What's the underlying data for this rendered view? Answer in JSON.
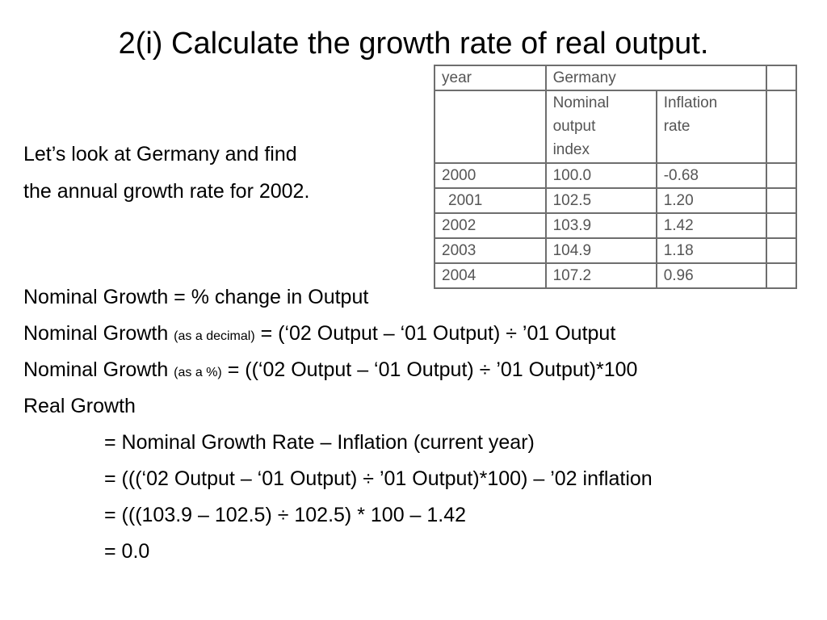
{
  "title": "2(i) Calculate the growth rate of real output.",
  "intro": {
    "line1": "Let’s look at Germany and find",
    "line2": "the annual growth rate for 2002."
  },
  "table": {
    "header_year": "year",
    "header_country": "Germany",
    "col_nominal_1": "Nominal",
    "col_nominal_2": "output",
    "col_nominal_3": "index",
    "col_inflation_1": "Inflation",
    "col_inflation_2": "rate",
    "rows": [
      {
        "year": "2000",
        "nominal": "100.0",
        "inflation": "-0.68"
      },
      {
        "year": "2001",
        "nominal": "102.5",
        "inflation": "1.20"
      },
      {
        "year": "2002",
        "nominal": "103.9",
        "inflation": "1.42"
      },
      {
        "year": "2003",
        "nominal": "104.9",
        "inflation": "1.18"
      },
      {
        "year": "2004",
        "nominal": "107.2",
        "inflation": "0.96"
      }
    ]
  },
  "formulas": {
    "f1": "Nominal Growth = % change in Output",
    "f2_pre": "Nominal Growth ",
    "f2_small": "(as a decimal)",
    "f2_post": " = (‘02 Output – ‘01 Output) ÷ ’01 Output",
    "f3_pre": "Nominal Growth ",
    "f3_small": "(as a %)",
    "f3_post": " = ((‘02 Output – ‘01 Output) ÷ ’01 Output)*100",
    "f4": "Real Growth",
    "f5": "= Nominal Growth Rate – Inflation (current year)",
    "f6": "= (((‘02 Output – ‘01 Output) ÷ ’01 Output)*100) – ’02 inflation",
    "f7": "= (((103.9 – 102.5) ÷ 102.5) * 100 – 1.42",
    "f8": "= 0.0"
  }
}
